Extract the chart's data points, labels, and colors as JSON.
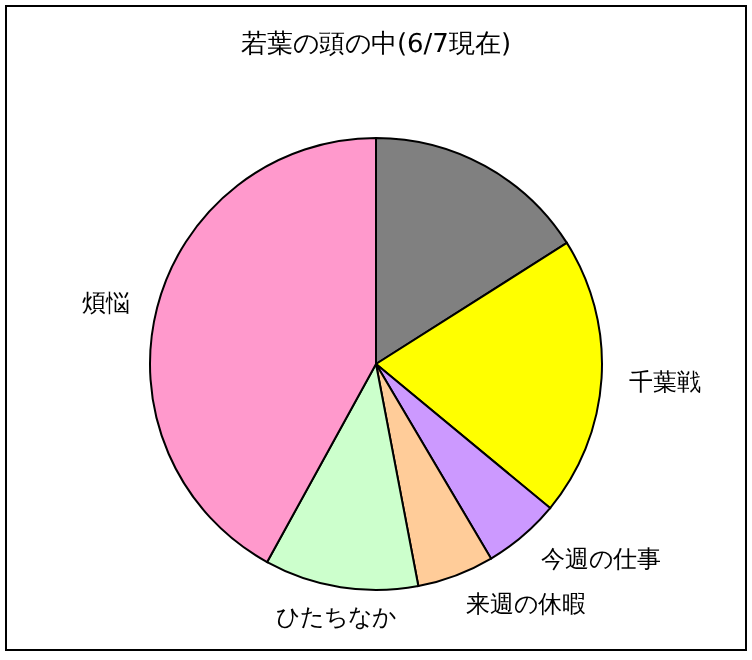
{
  "chart_data": {
    "type": "pie",
    "title": "若葉の頭の中(6/7現在)",
    "categories": [
      null,
      "千葉戦",
      "今週の仕事",
      "来週の休暇",
      "ひたちなか",
      "煩悩"
    ],
    "values": [
      16,
      20,
      5.5,
      5.5,
      11,
      42
    ],
    "colors": [
      "#808080",
      "#ffff00",
      "#cc99ff",
      "#ffcc99",
      "#ccffcc",
      "#ff99cc"
    ]
  }
}
